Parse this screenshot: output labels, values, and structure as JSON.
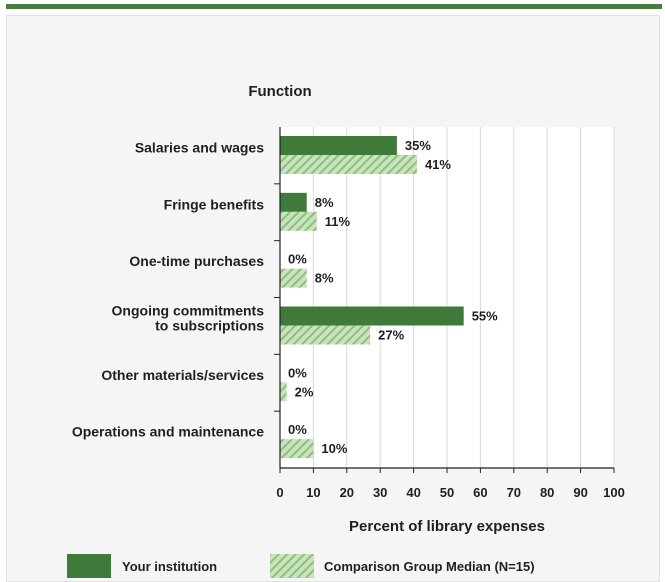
{
  "colors": {
    "top_bar": "#4a7d3c",
    "primary_bar": "#3f7a3b",
    "comparison_fill": "#c9e3bd",
    "comparison_hatch": "#8fbf80",
    "grid": "#d9d9d9",
    "axis": "#222222"
  },
  "chart_data": {
    "type": "bar",
    "orientation": "horizontal",
    "category_axis_title": "Function",
    "xlabel": "Percent of library expenses",
    "xlim": [
      0,
      100
    ],
    "xticks": [
      "0",
      "10",
      "20",
      "30",
      "40",
      "50",
      "60",
      "70",
      "80",
      "90",
      "100"
    ],
    "grid": true,
    "legend_position": "bottom",
    "categories": [
      [
        "Salaries and wages"
      ],
      [
        "Fringe benefits"
      ],
      [
        "One-time purchases"
      ],
      [
        "Ongoing commitments",
        "to subscriptions"
      ],
      [
        "Other materials/services"
      ],
      [
        "Operations and maintenance"
      ]
    ],
    "series": [
      {
        "name": "Your institution",
        "values": [
          35,
          8,
          0,
          55,
          0,
          0
        ],
        "labels": [
          "35%",
          "8%",
          "0%",
          "55%",
          "0%",
          "0%"
        ],
        "style": "solid"
      },
      {
        "name": "Comparison Group Median (N=15)",
        "values": [
          41,
          11,
          8,
          27,
          2,
          10
        ],
        "labels": [
          "41%",
          "11%",
          "8%",
          "27%",
          "2%",
          "10%"
        ],
        "style": "hatched"
      }
    ]
  }
}
